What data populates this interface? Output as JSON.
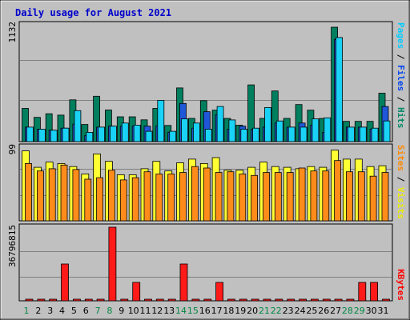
{
  "chart_data": {
    "type": "bar",
    "title": "Daily usage for August 2021",
    "days": [
      "1",
      "2",
      "3",
      "4",
      "5",
      "6",
      "7",
      "8",
      "9",
      "10",
      "11",
      "12",
      "13",
      "14",
      "15",
      "16",
      "17",
      "18",
      "19",
      "20",
      "21",
      "22",
      "23",
      "24",
      "25",
      "26",
      "27",
      "28",
      "29",
      "30",
      "31"
    ],
    "weekend_days": [
      "1",
      "7",
      "8",
      "14",
      "15",
      "21",
      "22",
      "28",
      "29"
    ],
    "panels": [
      {
        "id": "hits-files-pages",
        "max_label": "1132",
        "ylim": [
          0,
          1132
        ],
        "legend": [
          {
            "name": "Pages",
            "color": "#00ccff"
          },
          {
            "name": "Files",
            "color": "#0044ee"
          },
          {
            "name": "Hits",
            "color": "#008866"
          }
        ],
        "separator": " / ",
        "series": [
          {
            "name": "Hits",
            "color": "#007f5f",
            "values": [
              322,
              235,
              270,
              257,
              405,
              166,
              440,
              306,
              240,
              240,
              211,
              322,
              157,
              520,
              225,
              397,
              305,
              225,
              159,
              550,
              225,
              491,
              225,
              359,
              305,
              225,
              1109,
              196,
              196,
              196,
              469
            ]
          },
          {
            "name": "Files",
            "color": "#1f57d8",
            "values": [
              140,
              120,
              110,
              130,
              170,
              60,
              140,
              150,
              150,
              150,
              150,
              150,
              90,
              370,
              130,
              290,
              260,
              120,
              150,
              120,
              140,
              180,
              140,
              180,
              160,
              90,
              990,
              140,
              140,
              120,
              340
            ]
          },
          {
            "name": "Pages",
            "color": "#19d2f5",
            "values": [
              140,
              120,
              110,
              130,
              300,
              90,
              140,
              150,
              180,
              160,
              100,
              400,
              100,
              220,
              180,
              120,
              340,
              210,
              120,
              130,
              330,
              200,
              140,
              140,
              220,
              230,
              1009,
              140,
              140,
              130,
              200
            ]
          }
        ]
      },
      {
        "id": "visits-sites",
        "max_label": "99",
        "ylim": [
          0,
          99
        ],
        "legend": [
          {
            "name": "Sites",
            "color": "#ff8800"
          },
          {
            "name": "Visits",
            "color": "#eeee00"
          }
        ],
        "separator": " / ",
        "series": [
          {
            "name": "Visits",
            "color": "#ffff33",
            "values": [
              94,
              72,
              79,
              77,
              73,
              63,
              90,
              80,
              62,
              62,
              70,
              80,
              67,
              78,
              83,
              77,
              85,
              68,
              68,
              72,
              79,
              73,
              72,
              70,
              73,
              72,
              95,
              83,
              83,
              73,
              74
            ]
          },
          {
            "name": "Sites",
            "color": "#ff8c1a",
            "values": [
              77,
              67,
              70,
              75,
              69,
              56,
              58,
              68,
              55,
              58,
              66,
              63,
              63,
              65,
              73,
              71,
              65,
              66,
              63,
              61,
              65,
              65,
              65,
              71,
              67,
              67,
              81,
              66,
              66,
              60,
              65
            ]
          }
        ]
      },
      {
        "id": "kbytes",
        "max_label": "36796815",
        "ylim": [
          0,
          36796815
        ],
        "legend": [
          {
            "name": "KBytes",
            "color": "#ff0000"
          }
        ],
        "separator": "",
        "series": [
          {
            "name": "KBytes",
            "color": "#ff1a1a",
            "values": [
              0,
              0,
              0,
              18400000,
              0,
              0,
              0,
              36796815,
              0,
              9200000,
              0,
              0,
              0,
              18400000,
              0,
              0,
              9200000,
              0,
              0,
              0,
              0,
              0,
              0,
              0,
              0,
              0,
              0,
              0,
              9200000,
              9200000,
              0
            ]
          }
        ]
      }
    ]
  }
}
